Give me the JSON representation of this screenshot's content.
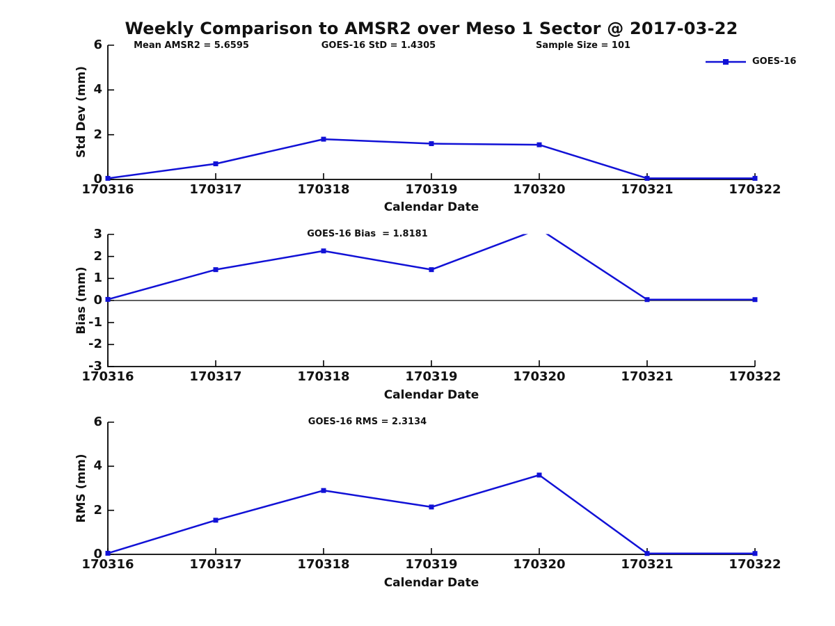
{
  "page": {
    "title": "Weekly Comparison to AMSR2 over Meso 1 Sector @ 2017-03-22"
  },
  "legend": {
    "label": "GOES-16",
    "marker": "square-marker-icon",
    "position": "top-right"
  },
  "colors": {
    "line": "#1111d6",
    "axis": "#000000",
    "text": "#111111",
    "background": "#ffffff"
  },
  "chart_data": [
    {
      "type": "line",
      "title": "",
      "categories": [
        "170316",
        "170317",
        "170318",
        "170319",
        "170320",
        "170321",
        "170322"
      ],
      "series": [
        {
          "name": "GOES-16",
          "values": [
            0.05,
            0.7,
            1.8,
            1.6,
            1.55,
            0.05,
            0.05
          ]
        }
      ],
      "xlabel": "Calendar Date",
      "ylabel": "Std Dev (mm)",
      "ylim": [
        0,
        6
      ],
      "yticks": [
        0,
        2,
        4,
        6
      ],
      "grid": false,
      "zero_line": false,
      "annotations": [
        "Mean AMSR2 = 5.6595",
        "GOES-16 StD = 1.4305",
        "Sample Size = 101"
      ]
    },
    {
      "type": "line",
      "title": "",
      "categories": [
        "170316",
        "170317",
        "170318",
        "170319",
        "170320",
        "170321",
        "170322"
      ],
      "series": [
        {
          "name": "GOES-16",
          "values": [
            0.05,
            1.4,
            2.25,
            1.4,
            3.25,
            0.04,
            0.04
          ]
        }
      ],
      "xlabel": "Calendar Date",
      "ylabel": "Bias (mm)",
      "ylim": [
        -3,
        3
      ],
      "yticks": [
        -3,
        -2,
        -1,
        0,
        1,
        2,
        3
      ],
      "grid": false,
      "zero_line": true,
      "clipped_peak_note": "value at 170320 exceeds y-axis max and is clipped at 3",
      "annotations": [
        "GOES-16 Bias  = 1.8181"
      ]
    },
    {
      "type": "line",
      "title": "",
      "categories": [
        "170316",
        "170317",
        "170318",
        "170319",
        "170320",
        "170321",
        "170322"
      ],
      "series": [
        {
          "name": "GOES-16",
          "values": [
            0.05,
            1.55,
            2.9,
            2.15,
            3.6,
            0.04,
            0.04
          ]
        }
      ],
      "xlabel": "Calendar Date",
      "ylabel": "RMS (mm)",
      "ylim": [
        0,
        6
      ],
      "yticks": [
        0,
        2,
        4,
        6
      ],
      "grid": false,
      "zero_line": false,
      "annotations": [
        "GOES-16 RMS = 2.3134"
      ]
    }
  ]
}
